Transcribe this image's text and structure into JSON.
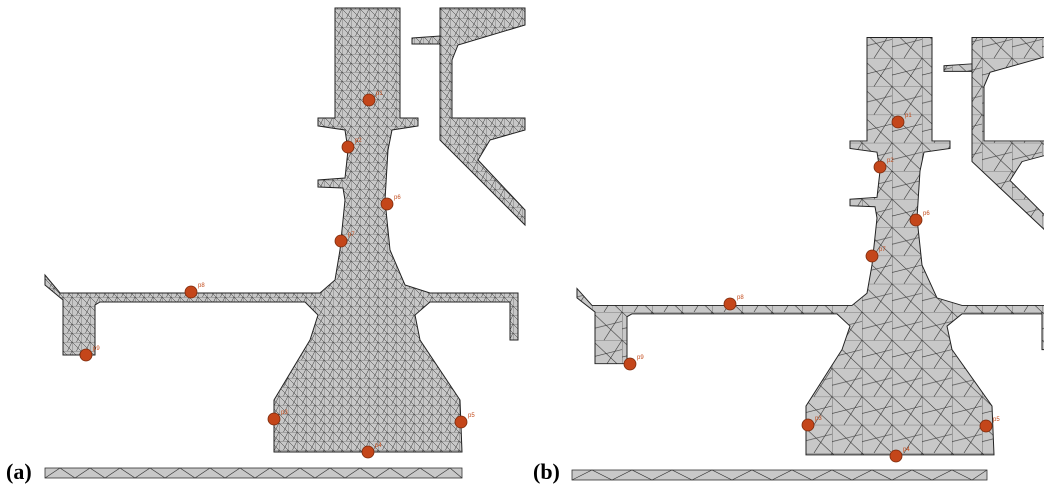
{
  "panels": [
    {
      "label": "(a)",
      "probes": [
        "p1",
        "p2",
        "p6",
        "p7",
        "p8",
        "p9",
        "p3",
        "p4",
        "p5"
      ]
    },
    {
      "label": "(b)",
      "probes": [
        "p1",
        "p2",
        "p6",
        "p7",
        "p8",
        "p9",
        "p3",
        "p4",
        "p5"
      ]
    }
  ]
}
